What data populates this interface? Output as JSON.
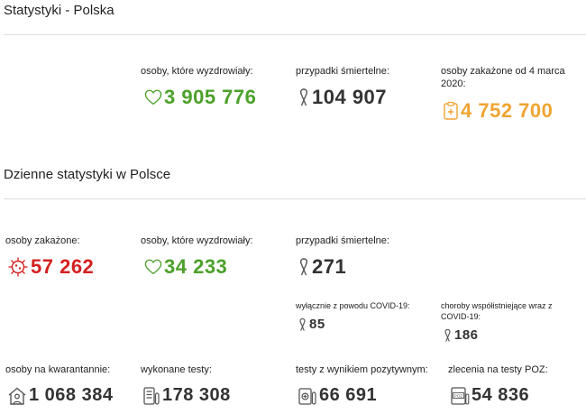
{
  "header": {
    "title": "Statystyki - Polska"
  },
  "totals": {
    "recovered": {
      "label": "osoby, które wyzdrowiały:",
      "value": "3 905 776"
    },
    "deaths": {
      "label": "przypadki śmiertelne:",
      "value": "104 907"
    },
    "infected": {
      "label": "osoby zakażone od 4 marca 2020:",
      "value": "4 752 700"
    }
  },
  "daily": {
    "title": "Dzienne statystyki w Polsce",
    "infected": {
      "label": "osoby zakażone:",
      "value": "57 262"
    },
    "recovered": {
      "label": "osoby, które wyzdrowiały:",
      "value": "34 233"
    },
    "deaths": {
      "label": "przypadki śmiertelne:",
      "value": "271"
    },
    "covid_only": {
      "label": "wyłącznie z powodu COVID-19:",
      "value": "85"
    },
    "comorbid": {
      "label": "choroby współistniejące wraz z COVID-19:",
      "value": "186"
    },
    "quarantine": {
      "label": "osoby na kwarantannie:",
      "value": "1 068 384"
    },
    "tests": {
      "label": "wykonane testy:",
      "value": "178 308"
    },
    "positive_tests": {
      "label": "testy z wynikiem pozytywnym:",
      "value": "66 691"
    },
    "poz_orders": {
      "label": "zlecenia na testy POZ:",
      "value": "54 836"
    }
  },
  "colors": {
    "green": "#4ca12a",
    "red": "#d42121",
    "orange": "#f0a431",
    "dark": "#333333"
  }
}
